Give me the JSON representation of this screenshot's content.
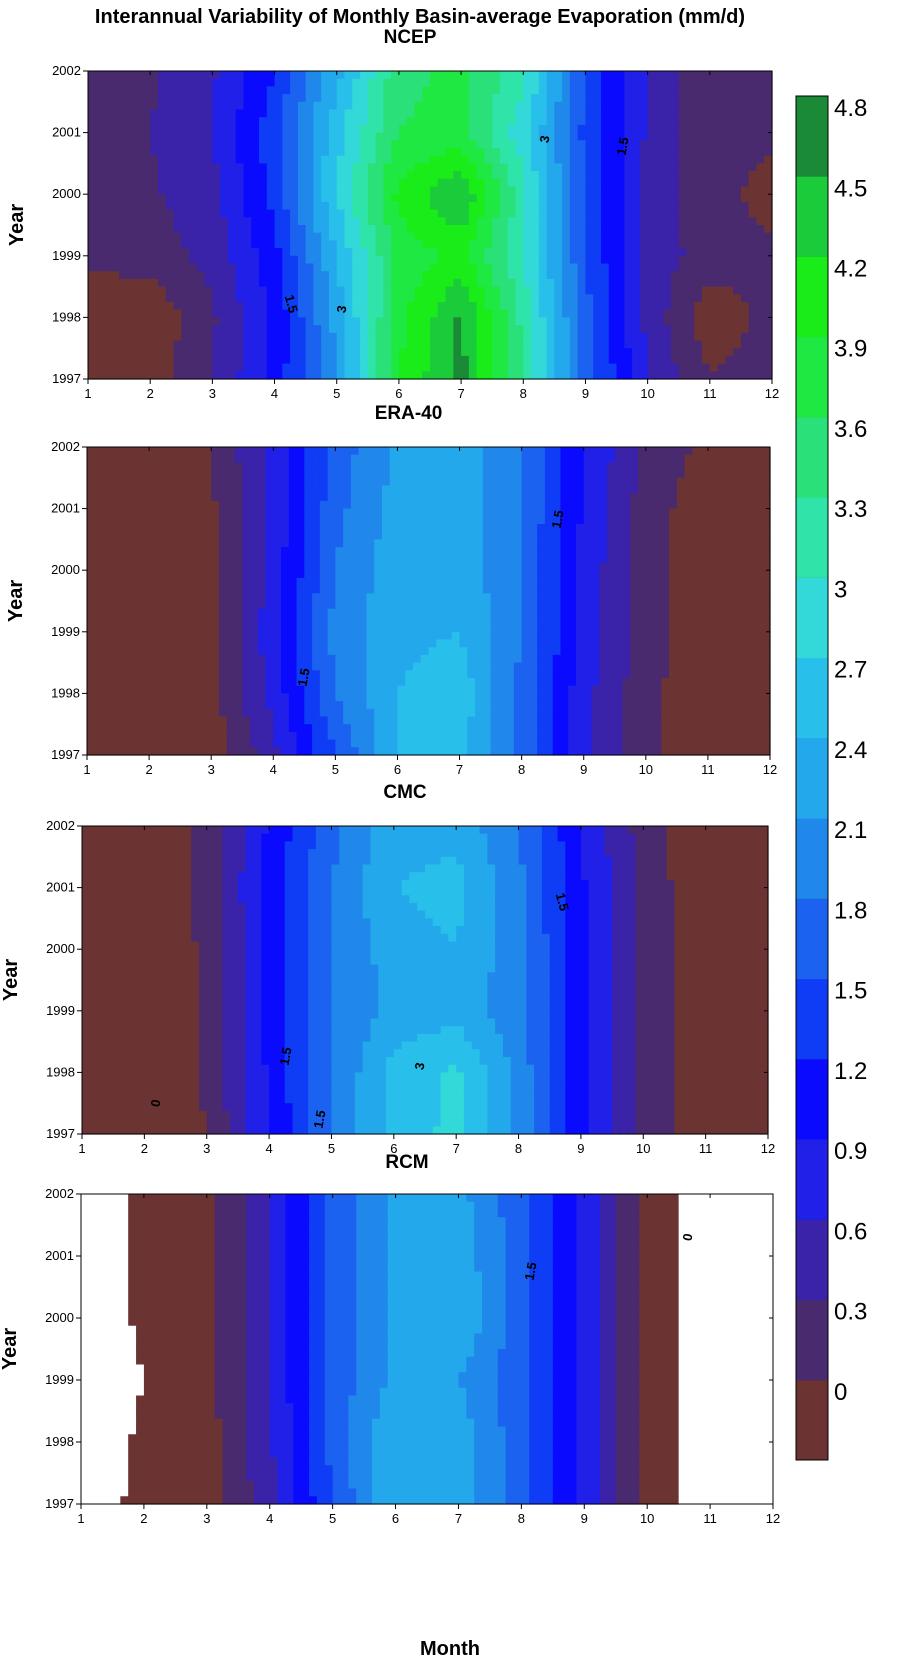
{
  "chart_data": {
    "type": "heatmap",
    "title": "Interannual Variability of Monthly Basin-average Evaporation (mm/d)",
    "xlabel": "Month",
    "ylabel": "Year",
    "x_ticks": [
      "1",
      "2",
      "3",
      "4",
      "5",
      "6",
      "7",
      "8",
      "9",
      "10",
      "11",
      "12"
    ],
    "y_ticks": [
      "1997",
      "1998",
      "1999",
      "2000",
      "2001",
      "2002"
    ],
    "xlim": [
      1,
      12
    ],
    "ylim": [
      1997,
      2002
    ],
    "colorbar": {
      "ticks": [
        "0",
        "0.3",
        "0.6",
        "0.9",
        "1.2",
        "1.5",
        "1.8",
        "2.1",
        "2.4",
        "2.7",
        "3",
        "3.3",
        "3.6",
        "3.9",
        "4.2",
        "4.5",
        "4.8"
      ],
      "range": [
        0,
        5.0
      ],
      "step": 0.3,
      "colors": [
        "#6b3432",
        "#4a2a6e",
        "#3a23a8",
        "#2020e8",
        "#0a0aff",
        "#0f3cf5",
        "#1a62ef",
        "#2088ea",
        "#23a8ec",
        "#28c0ea",
        "#33d8d8",
        "#2fe4a8",
        "#2ae078",
        "#20e842",
        "#19ec19",
        "#1acc3a",
        "#1a8a36"
      ]
    },
    "panels": [
      {
        "name": "NCEP",
        "contour_labels": [
          "1.5",
          "3",
          "3",
          "1.5"
        ],
        "months": [
          1,
          2,
          3,
          4,
          5,
          6,
          7,
          8,
          9,
          10,
          11,
          12
        ],
        "years": [
          1997,
          1998,
          1999,
          2000,
          2001,
          2002
        ],
        "values": [
          [
            0.3,
            0.15,
            0.6,
            1.3,
            2.4,
            4.2,
            4.9,
            3.6,
            2.0,
            0.9,
            0.3,
            0.5
          ],
          [
            0.0,
            0.05,
            0.55,
            1.25,
            2.5,
            4.1,
            4.85,
            3.5,
            1.9,
            0.8,
            0.1,
            0.4
          ],
          [
            0.4,
            0.45,
            0.7,
            1.4,
            2.7,
            4.0,
            4.3,
            3.3,
            1.8,
            0.8,
            0.45,
            0.35
          ],
          [
            0.45,
            0.55,
            0.8,
            1.6,
            3.0,
            4.3,
            4.8,
            3.4,
            1.8,
            0.8,
            0.4,
            0.2
          ],
          [
            0.55,
            0.6,
            0.9,
            1.7,
            2.9,
            3.9,
            4.0,
            3.1,
            1.7,
            0.85,
            0.4,
            0.35
          ],
          [
            0.55,
            0.55,
            0.85,
            1.5,
            2.6,
            3.8,
            4.0,
            3.4,
            1.8,
            0.85,
            0.4,
            0.35
          ]
        ]
      },
      {
        "name": "ERA-40",
        "contour_labels": [
          "1.5",
          "1.5"
        ],
        "months": [
          1,
          2,
          3,
          4,
          5,
          6,
          7,
          8,
          9,
          10,
          11,
          12
        ],
        "years": [
          1997,
          1998,
          1999,
          2000,
          2001,
          2002
        ],
        "values": [
          [
            0.05,
            0.05,
            0.1,
            0.8,
            1.8,
            2.7,
            2.8,
            2.0,
            1.0,
            0.4,
            0.05,
            0.05
          ],
          [
            0.05,
            0.05,
            0.2,
            1.0,
            2.1,
            2.7,
            2.9,
            2.0,
            1.0,
            0.4,
            0.05,
            0.05
          ],
          [
            0.05,
            0.05,
            0.2,
            1.1,
            2.2,
            2.6,
            2.7,
            2.1,
            1.1,
            0.45,
            0.05,
            0.05
          ],
          [
            0.05,
            0.05,
            0.2,
            1.0,
            2.1,
            2.6,
            2.6,
            2.1,
            1.1,
            0.45,
            0.1,
            0.05
          ],
          [
            0.05,
            0.05,
            0.25,
            1.0,
            2.0,
            2.5,
            2.55,
            2.1,
            1.15,
            0.45,
            0.1,
            0.05
          ],
          [
            0.05,
            0.05,
            0.3,
            1.0,
            1.9,
            2.5,
            2.55,
            2.1,
            1.2,
            0.55,
            0.2,
            0.05
          ]
        ]
      },
      {
        "name": "CMC",
        "contour_labels": [
          "1.5",
          "3",
          "1.5"
        ],
        "months": [
          1,
          2,
          3,
          4,
          5,
          6,
          7,
          8,
          9,
          10,
          11,
          12
        ],
        "years": [
          1997,
          1998,
          1999,
          2000,
          2001,
          2002
        ],
        "values": [
          [
            0.05,
            0.05,
            0.3,
            1.2,
            2.1,
            2.8,
            3.1,
            2.3,
            1.3,
            0.5,
            0.05,
            0.05
          ],
          [
            0.05,
            0.05,
            0.35,
            1.25,
            2.1,
            2.8,
            3.05,
            2.3,
            1.3,
            0.5,
            0.05,
            0.05
          ],
          [
            0.05,
            0.05,
            0.35,
            1.3,
            2.1,
            2.5,
            2.6,
            2.2,
            1.3,
            0.5,
            0.05,
            0.05
          ],
          [
            0.05,
            0.05,
            0.35,
            1.3,
            2.1,
            2.55,
            2.7,
            2.2,
            1.3,
            0.5,
            0.05,
            0.05
          ],
          [
            0.05,
            0.05,
            0.4,
            1.3,
            2.1,
            2.7,
            2.8,
            2.2,
            1.25,
            0.5,
            0.05,
            0.05
          ],
          [
            0.05,
            0.05,
            0.4,
            1.25,
            2.0,
            2.6,
            2.6,
            2.1,
            1.2,
            0.45,
            0.05,
            0.05
          ]
        ]
      },
      {
        "name": "RCM",
        "contour_labels": [
          "1.5",
          "0",
          "1.5",
          "0"
        ],
        "months": [
          1,
          2,
          3,
          4,
          5,
          6,
          7,
          8,
          9,
          10,
          11,
          12
        ],
        "years": [
          1997,
          1998,
          1999,
          2000,
          2001,
          2002
        ],
        "values": [
          [
            -0.1,
            0.05,
            0.1,
            0.8,
            1.8,
            2.7,
            2.6,
            1.9,
            1.1,
            0.2,
            -0.2,
            -0.2
          ],
          [
            -0.2,
            0.05,
            0.15,
            0.85,
            1.9,
            2.7,
            2.6,
            1.9,
            1.1,
            0.2,
            -0.2,
            -0.2
          ],
          [
            -0.2,
            0.0,
            0.2,
            0.9,
            1.9,
            2.5,
            2.4,
            1.9,
            1.1,
            0.2,
            -0.2,
            -0.2
          ],
          [
            -0.2,
            0.05,
            0.2,
            0.9,
            1.9,
            2.5,
            2.7,
            1.9,
            1.1,
            0.2,
            -0.2,
            -0.2
          ],
          [
            -0.2,
            0.05,
            0.2,
            0.9,
            1.9,
            2.5,
            2.6,
            1.9,
            1.1,
            0.2,
            -0.2,
            -0.2
          ],
          [
            -0.2,
            0.05,
            0.2,
            0.9,
            1.9,
            2.5,
            2.5,
            1.9,
            1.1,
            0.2,
            -0.2,
            -0.2
          ]
        ]
      }
    ]
  }
}
